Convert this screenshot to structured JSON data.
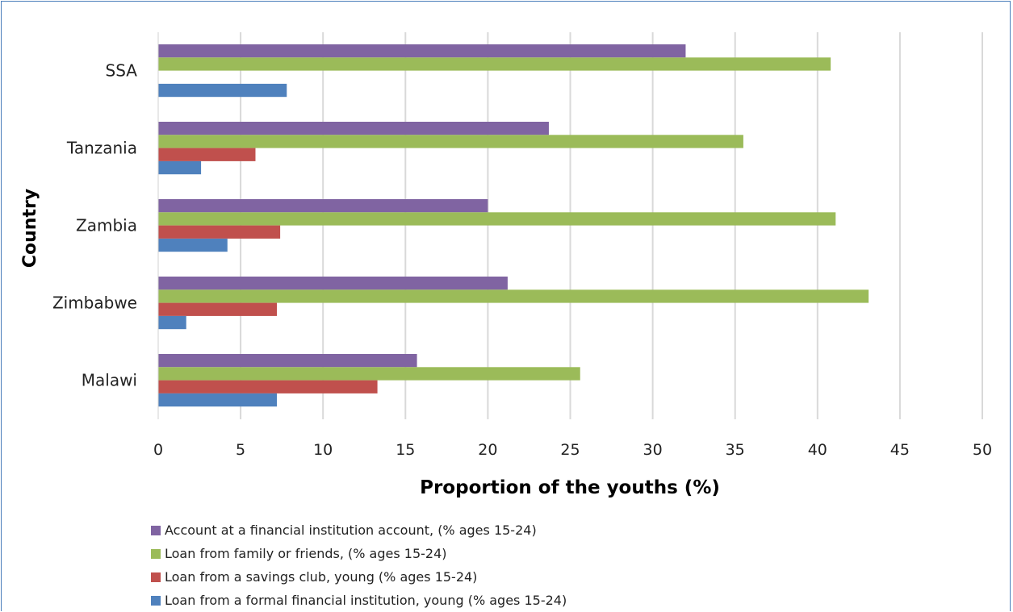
{
  "chart_data": {
    "type": "bar",
    "orientation": "horizontal",
    "categories": [
      "SSA",
      "Tanzania",
      "Zambia",
      "Zimbabwe",
      "Malawi"
    ],
    "series": [
      {
        "name": "Account at a financial institution account,  (% ages 15-24)",
        "color": "#8064a2",
        "values": [
          32.0,
          23.7,
          20.0,
          21.2,
          15.7
        ]
      },
      {
        "name": "Loan from family or friends, (% ages 15-24)",
        "color": "#9bbb59",
        "values": [
          40.8,
          35.5,
          41.1,
          43.1,
          25.6
        ]
      },
      {
        "name": "Loan from a savings club, young (% ages 15-24)",
        "color": "#c0504d",
        "values": [
          null,
          5.9,
          7.4,
          7.2,
          13.3
        ]
      },
      {
        "name": "Loan from a formal financial institution, young (% ages 15-24)",
        "color": "#4f81bd",
        "values": [
          7.8,
          2.6,
          4.2,
          1.7,
          7.2
        ]
      }
    ],
    "xlabel": "Proportion of the youths (%)",
    "ylabel": "Country",
    "xlim": [
      0,
      50
    ],
    "ticks": [
      "0",
      "5",
      "10",
      "15",
      "20",
      "25",
      "30",
      "35",
      "40",
      "45",
      "50"
    ],
    "grid": "vertical",
    "legend_position": "bottom"
  }
}
